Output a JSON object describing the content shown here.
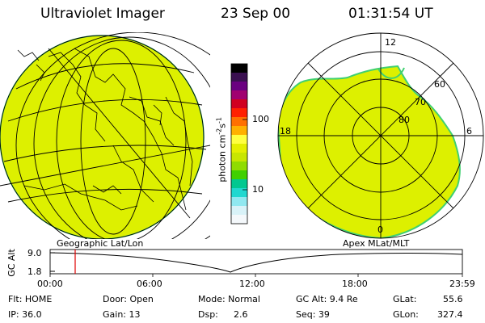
{
  "header": {
    "title": "Ultraviolet Imager",
    "date": "23 Sep 00",
    "time": "01:31:54 UT"
  },
  "colorbar": {
    "unit": "photon cm",
    "unit_exp": "-2",
    "unit_s": "s",
    "unit_s_exp": "-1",
    "ticks": [
      "100",
      "10"
    ],
    "colors": [
      "#000000",
      "#3a1050",
      "#6a0080",
      "#a00070",
      "#d00020",
      "#ff2000",
      "#ff7000",
      "#ffb000",
      "#ffff40",
      "#e4ef00",
      "#c8e600",
      "#90dc00",
      "#40d000",
      "#00c890",
      "#20d8d0",
      "#90e8f0",
      "#d8f2f8",
      "#f4f8fb"
    ]
  },
  "panels": {
    "left_label": "Geographic Lat/Lon",
    "right_label": "Apex MLat/MLT",
    "polar_labels": {
      "top": "12",
      "left": "18",
      "right": "6",
      "bottom": "0"
    },
    "lat_labels": [
      "60",
      "70",
      "80"
    ],
    "fill_color": "#ddf000",
    "edge_color": "#40d070"
  },
  "timeline": {
    "y_axis_label": "GC Alt",
    "y_ticks": [
      "9.0",
      "1.8"
    ],
    "x_ticks": [
      "00:00",
      "06:00",
      "12:00",
      "18:00",
      "23:59"
    ],
    "cursor_time": "01:31:54",
    "cursor_color": "#e00000"
  },
  "info": {
    "flt": "Flt: HOME",
    "ip": "IP: 36.0",
    "door": "Door: Open",
    "gain": "Gain: 13",
    "mode": "Mode: Normal",
    "dsp_label": "Dsp:",
    "dsp_value": "2.6",
    "gc_alt": "GC Alt: 9.4 Re",
    "seq": "Seq: 39",
    "glat": "GLat:",
    "glat_value": "55.6",
    "glon": "GLon:",
    "glon_value": "327.4"
  }
}
